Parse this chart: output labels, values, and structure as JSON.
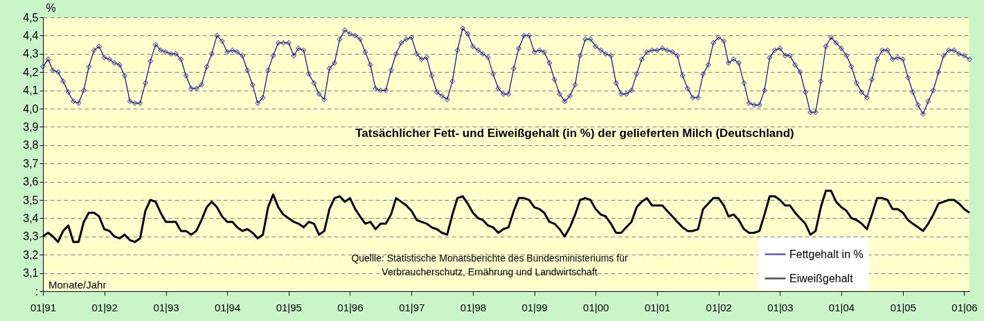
{
  "chart_data": {
    "type": "line",
    "title": "Tatsächlicher Fett- und Eiweißgehalt (in %) der gelieferten Milch (Deutschland)",
    "xlabel": "Monate/Jahr",
    "ylabel": "%",
    "annotations": [
      "Quellle: Statistische Monatsberichte des Bundesministeriums für\nVerbraucherschutz, Ernährung und Landwirtschaft"
    ],
    "x": [
      "1991-01",
      "1991-02",
      "1991-03",
      "1991-04",
      "1991-05",
      "1991-06",
      "1991-07",
      "1991-08",
      "1991-09",
      "1991-10",
      "1991-11",
      "1991-12",
      "1992-01",
      "1992-02",
      "1992-03",
      "1992-04",
      "1992-05",
      "1992-06",
      "1992-07",
      "1992-08",
      "1992-09",
      "1992-10",
      "1992-11",
      "1992-12",
      "1993-01",
      "1993-02",
      "1993-03",
      "1993-04",
      "1993-05",
      "1993-06",
      "1993-07",
      "1993-08",
      "1993-09",
      "1993-10",
      "1993-11",
      "1993-12",
      "1994-01",
      "1994-02",
      "1994-03",
      "1994-04",
      "1994-05",
      "1994-06",
      "1994-07",
      "1994-08",
      "1994-09",
      "1994-10",
      "1994-11",
      "1994-12",
      "1995-01",
      "1995-02",
      "1995-03",
      "1995-04",
      "1995-05",
      "1995-06",
      "1995-07",
      "1995-08",
      "1995-09",
      "1995-10",
      "1995-11",
      "1995-12",
      "1996-01",
      "1996-02",
      "1996-03",
      "1996-04",
      "1996-05",
      "1996-06",
      "1996-07",
      "1996-08",
      "1996-09",
      "1996-10",
      "1996-11",
      "1996-12",
      "1997-01",
      "1997-02",
      "1997-03",
      "1997-04",
      "1997-05",
      "1997-06",
      "1997-07",
      "1997-08",
      "1997-09",
      "1997-10",
      "1997-11",
      "1997-12",
      "1998-01",
      "1998-02",
      "1998-03",
      "1998-04",
      "1998-05",
      "1998-06",
      "1998-07",
      "1998-08",
      "1998-09",
      "1998-10",
      "1998-11",
      "1998-12",
      "1999-01",
      "1999-02",
      "1999-03",
      "1999-04",
      "1999-05",
      "1999-06",
      "1999-07",
      "1999-08",
      "1999-09",
      "1999-10",
      "1999-11",
      "1999-12",
      "2000-01",
      "2000-02",
      "2000-03",
      "2000-04",
      "2000-05",
      "2000-06",
      "2000-07",
      "2000-08",
      "2000-09",
      "2000-10",
      "2000-11",
      "2000-12",
      "2001-01",
      "2001-02",
      "2001-03",
      "2001-04",
      "2001-05",
      "2001-06",
      "2001-07",
      "2001-08",
      "2001-09",
      "2001-10",
      "2001-11",
      "2001-12",
      "2002-01",
      "2002-02",
      "2002-03",
      "2002-04",
      "2002-05",
      "2002-06",
      "2002-07",
      "2002-08",
      "2002-09",
      "2002-10",
      "2002-11",
      "2002-12",
      "2003-01",
      "2003-02",
      "2003-03",
      "2003-04",
      "2003-05",
      "2003-06",
      "2003-07",
      "2003-08",
      "2003-09",
      "2003-10",
      "2003-11",
      "2003-12",
      "2004-01",
      "2004-02",
      "2004-03",
      "2004-04",
      "2004-05",
      "2004-06",
      "2004-07",
      "2004-08",
      "2004-09",
      "2004-10",
      "2004-11",
      "2004-12",
      "2005-01",
      "2005-02",
      "2005-03",
      "2005-04",
      "2005-05",
      "2005-06",
      "2005-07",
      "2005-08",
      "2005-09",
      "2005-10",
      "2005-11",
      "2005-12",
      "2006-01",
      "2006-02"
    ],
    "series": [
      {
        "name": "Fettgehalt in %",
        "color": "#1a1a99",
        "marker": "diamond",
        "values": [
          4.23,
          4.27,
          4.21,
          4.2,
          4.15,
          4.09,
          4.04,
          4.03,
          4.1,
          4.23,
          4.32,
          4.34,
          4.28,
          4.27,
          4.25,
          4.24,
          4.18,
          4.04,
          4.03,
          4.03,
          4.14,
          4.26,
          4.35,
          4.32,
          4.31,
          4.3,
          4.3,
          4.27,
          4.18,
          4.11,
          4.11,
          4.13,
          4.23,
          4.3,
          4.4,
          4.37,
          4.31,
          4.32,
          4.31,
          4.29,
          4.21,
          4.13,
          4.03,
          4.06,
          4.21,
          4.29,
          4.36,
          4.36,
          4.36,
          4.29,
          4.33,
          4.32,
          4.19,
          4.14,
          4.08,
          4.05,
          4.22,
          4.25,
          4.38,
          4.43,
          4.41,
          4.4,
          4.38,
          4.31,
          4.24,
          4.11,
          4.1,
          4.1,
          4.21,
          4.3,
          4.36,
          4.38,
          4.39,
          4.3,
          4.27,
          4.28,
          4.18,
          4.09,
          4.07,
          4.05,
          4.15,
          4.32,
          4.44,
          4.41,
          4.34,
          4.32,
          4.3,
          4.28,
          4.19,
          4.11,
          4.08,
          4.08,
          4.22,
          4.33,
          4.4,
          4.4,
          4.31,
          4.32,
          4.31,
          4.25,
          4.16,
          4.08,
          4.04,
          4.07,
          4.13,
          4.29,
          4.38,
          4.38,
          4.34,
          4.32,
          4.3,
          4.29,
          4.14,
          4.08,
          4.08,
          4.1,
          4.19,
          4.27,
          4.31,
          4.32,
          4.32,
          4.33,
          4.32,
          4.31,
          4.29,
          4.18,
          4.11,
          4.06,
          4.06,
          4.19,
          4.24,
          4.36,
          4.39,
          4.37,
          4.25,
          4.27,
          4.25,
          4.14,
          4.03,
          4.02,
          4.02,
          4.1,
          4.28,
          4.32,
          4.33,
          4.29,
          4.29,
          4.24,
          4.2,
          4.09,
          3.98,
          3.98,
          4.15,
          4.34,
          4.39,
          4.36,
          4.33,
          4.29,
          4.23,
          4.14,
          4.09,
          4.06,
          4.16,
          4.27,
          4.32,
          4.32,
          4.27,
          4.28,
          4.27,
          4.17,
          4.09,
          4.02,
          3.97,
          4.04,
          4.1,
          4.2,
          4.29,
          4.32,
          4.32,
          4.3,
          4.29,
          4.27
        ]
      },
      {
        "name": "Eiweißgehalt",
        "color": "#000000",
        "marker": "none",
        "values": [
          3.3,
          3.32,
          3.3,
          3.27,
          3.33,
          3.36,
          3.27,
          3.27,
          3.38,
          3.43,
          3.43,
          3.41,
          3.34,
          3.33,
          3.3,
          3.29,
          3.31,
          3.28,
          3.27,
          3.29,
          3.44,
          3.5,
          3.49,
          3.43,
          3.38,
          3.38,
          3.38,
          3.33,
          3.33,
          3.31,
          3.33,
          3.39,
          3.46,
          3.49,
          3.46,
          3.41,
          3.38,
          3.38,
          3.35,
          3.33,
          3.34,
          3.32,
          3.29,
          3.31,
          3.46,
          3.53,
          3.46,
          3.42,
          3.4,
          3.38,
          3.37,
          3.35,
          3.38,
          3.37,
          3.31,
          3.33,
          3.45,
          3.51,
          3.52,
          3.49,
          3.51,
          3.45,
          3.41,
          3.37,
          3.38,
          3.34,
          3.37,
          3.37,
          3.42,
          3.51,
          3.49,
          3.47,
          3.44,
          3.39,
          3.38,
          3.37,
          3.35,
          3.34,
          3.32,
          3.31,
          3.42,
          3.51,
          3.52,
          3.48,
          3.43,
          3.4,
          3.39,
          3.36,
          3.35,
          3.32,
          3.34,
          3.35,
          3.44,
          3.51,
          3.51,
          3.5,
          3.46,
          3.45,
          3.43,
          3.38,
          3.37,
          3.34,
          3.3,
          3.35,
          3.42,
          3.5,
          3.51,
          3.5,
          3.45,
          3.42,
          3.41,
          3.37,
          3.32,
          3.32,
          3.35,
          3.38,
          3.46,
          3.49,
          3.51,
          3.47,
          3.47,
          3.47,
          3.44,
          3.41,
          3.38,
          3.35,
          3.33,
          3.33,
          3.34,
          3.45,
          3.48,
          3.51,
          3.51,
          3.47,
          3.41,
          3.42,
          3.39,
          3.34,
          3.32,
          3.32,
          3.33,
          3.42,
          3.52,
          3.52,
          3.5,
          3.47,
          3.47,
          3.43,
          3.4,
          3.37,
          3.31,
          3.33,
          3.46,
          3.55,
          3.55,
          3.49,
          3.46,
          3.44,
          3.4,
          3.39,
          3.37,
          3.34,
          3.42,
          3.51,
          3.51,
          3.5,
          3.45,
          3.45,
          3.43,
          3.39,
          3.37,
          3.35,
          3.33,
          3.37,
          3.42,
          3.48,
          3.49,
          3.5,
          3.5,
          3.48,
          3.45,
          3.43
        ]
      }
    ],
    "xlim": [
      "1991-01",
      "2006-02"
    ],
    "xticks": [
      {
        "value": "1991-01",
        "label": "01|91"
      },
      {
        "value": "1992-01",
        "label": "01|92"
      },
      {
        "value": "1993-01",
        "label": "01|93"
      },
      {
        "value": "1994-01",
        "label": "01|94"
      },
      {
        "value": "1995-01",
        "label": "01|95"
      },
      {
        "value": "1996-01",
        "label": "01|96"
      },
      {
        "value": "1997-01",
        "label": "01|97"
      },
      {
        "value": "1998-01",
        "label": "01|98"
      },
      {
        "value": "1999-01",
        "label": "01|99"
      },
      {
        "value": "2000-01",
        "label": "01|00"
      },
      {
        "value": "2001-01",
        "label": "01|01"
      },
      {
        "value": "2002-01",
        "label": "01|02"
      },
      {
        "value": "2003-01",
        "label": "01|03"
      },
      {
        "value": "2004-01",
        "label": "01|04"
      },
      {
        "value": "2005-01",
        "label": "01|05"
      },
      {
        "value": "2006-01",
        "label": "01|06"
      }
    ],
    "ylim": [
      3.0,
      4.5
    ],
    "yticks": [
      {
        "value": 3.0,
        "label": ":"
      },
      {
        "value": 3.1,
        "label": "3,1"
      },
      {
        "value": 3.2,
        "label": "3,2"
      },
      {
        "value": 3.3,
        "label": "3,3"
      },
      {
        "value": 3.4,
        "label": "3,4"
      },
      {
        "value": 3.5,
        "label": "3,5"
      },
      {
        "value": 3.6,
        "label": "3,6"
      },
      {
        "value": 3.7,
        "label": "3,7"
      },
      {
        "value": 3.8,
        "label": "3,8"
      },
      {
        "value": 3.9,
        "label": "3,9"
      },
      {
        "value": 4.0,
        "label": "4,0"
      },
      {
        "value": 4.1,
        "label": "4,1"
      },
      {
        "value": 4.2,
        "label": "4,2"
      },
      {
        "value": 4.3,
        "label": "4,3"
      },
      {
        "value": 4.4,
        "label": "4,4"
      },
      {
        "value": 4.5,
        "label": "4,5"
      }
    ],
    "grid": "y",
    "legend": "bottom right",
    "line_style": "solid"
  }
}
